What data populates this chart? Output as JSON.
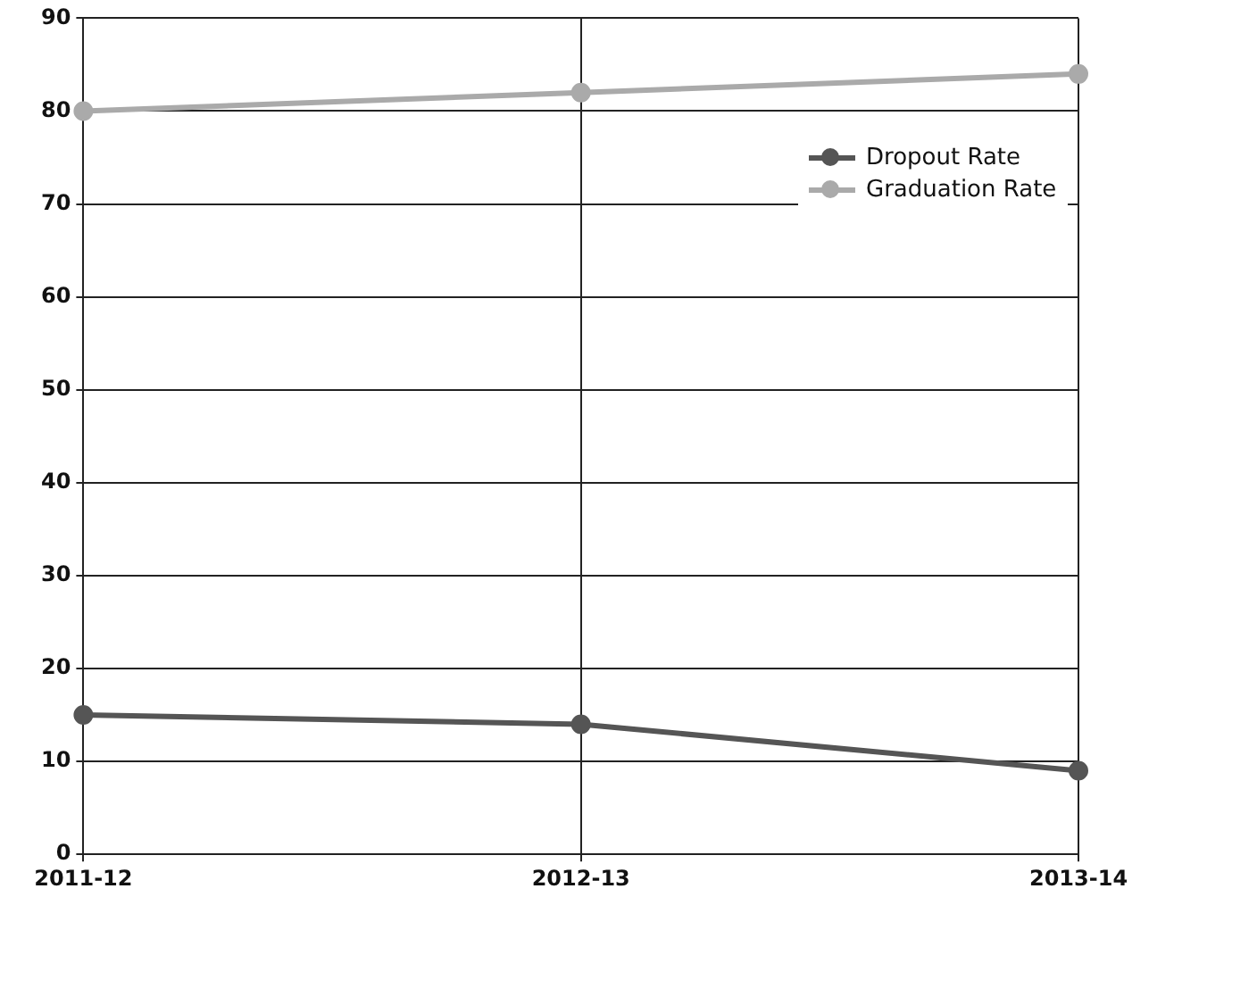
{
  "chart_data": {
    "type": "line",
    "categories": [
      "2011-12",
      "2012-13",
      "2013-14"
    ],
    "series": [
      {
        "name": "Dropout Rate",
        "color": "#555555",
        "values": [
          15,
          14,
          9
        ]
      },
      {
        "name": "Graduation Rate",
        "color": "#aaaaaa",
        "values": [
          80,
          82,
          84
        ]
      }
    ],
    "ylim": [
      0,
      90
    ],
    "yticks": [
      0,
      10,
      20,
      30,
      40,
      50,
      60,
      70,
      80,
      90
    ],
    "grid": true,
    "legend": "top right",
    "marker": "circle"
  }
}
